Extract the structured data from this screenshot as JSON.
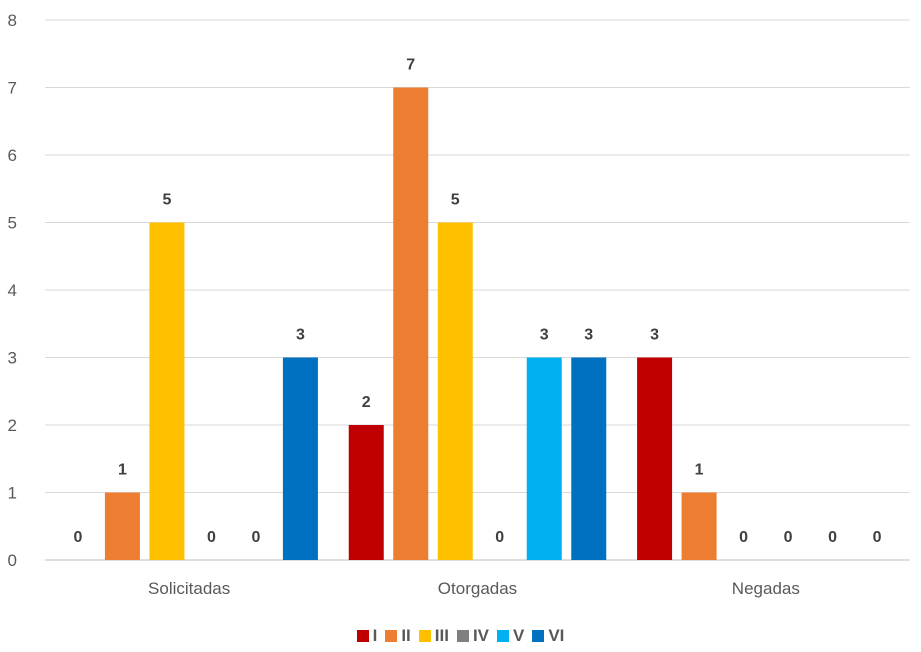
{
  "chart_data": {
    "type": "bar",
    "categories": [
      "Solicitadas",
      "Otorgadas",
      "Negadas"
    ],
    "series": [
      {
        "name": "I",
        "color": "#C00000",
        "values": [
          0,
          2,
          3
        ]
      },
      {
        "name": "II",
        "color": "#ED7D31",
        "values": [
          1,
          7,
          1
        ]
      },
      {
        "name": "III",
        "color": "#FFC000",
        "values": [
          5,
          5,
          0
        ]
      },
      {
        "name": "IV",
        "color": "#7F7F7F",
        "values": [
          0,
          0,
          0
        ]
      },
      {
        "name": "V",
        "color": "#00B0F0",
        "values": [
          0,
          3,
          0
        ]
      },
      {
        "name": "VI",
        "color": "#0070C0",
        "values": [
          3,
          3,
          0
        ]
      }
    ],
    "ylim": [
      0,
      8
    ],
    "yticks": [
      0,
      1,
      2,
      3,
      4,
      5,
      6,
      7,
      8
    ],
    "grid": true,
    "legend_position": "bottom"
  }
}
